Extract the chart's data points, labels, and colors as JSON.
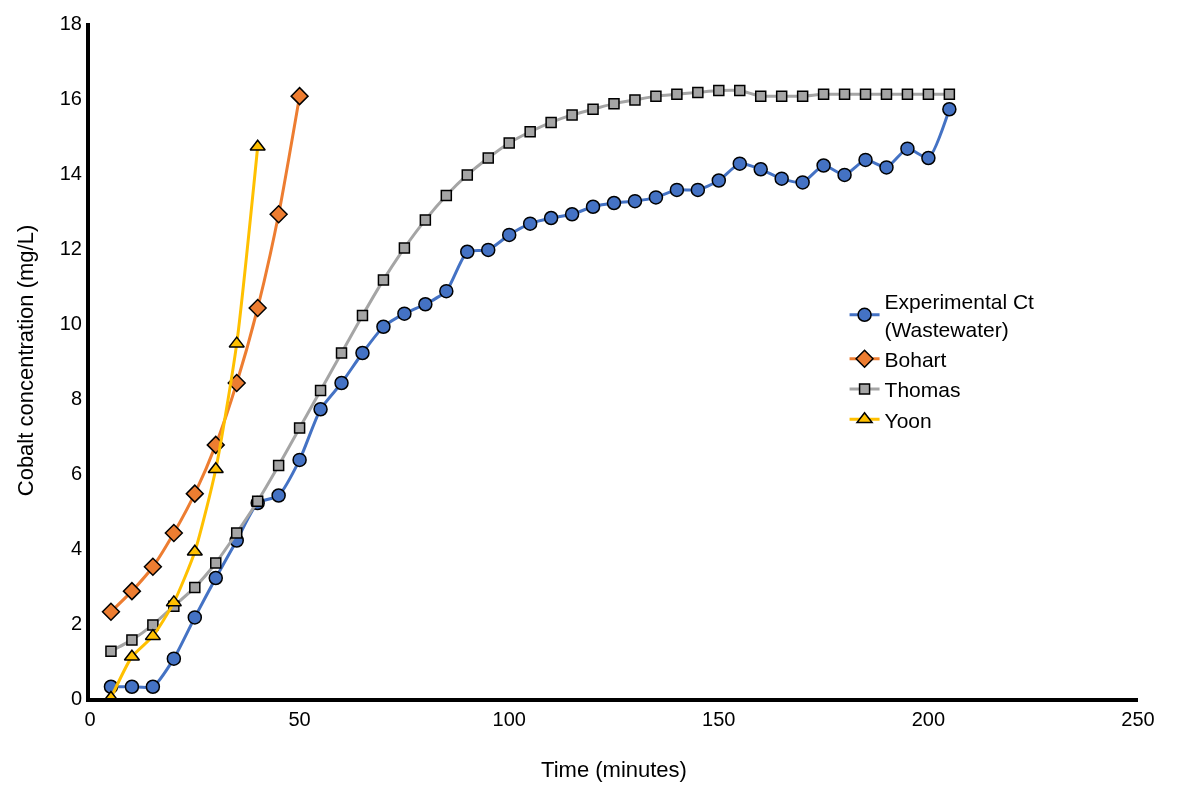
{
  "chart_data": {
    "type": "line",
    "xlabel": "Time (minutes)",
    "ylabel": "Cobalt concentration (mg/L)",
    "xlim": [
      0,
      250
    ],
    "xticks": [
      0,
      50,
      100,
      150,
      200,
      250
    ],
    "ylim": [
      0,
      18
    ],
    "yticks": [
      0,
      2,
      4,
      6,
      8,
      10,
      12,
      14,
      16,
      18
    ],
    "grid": false,
    "legend": "right",
    "series": [
      {
        "name": "Experimental Ct (Wastewater)",
        "color": "#4472c4",
        "marker": "circle",
        "x": [
          5,
          10,
          15,
          20,
          25,
          30,
          35,
          40,
          45,
          50,
          55,
          60,
          65,
          70,
          75,
          80,
          85,
          90,
          95,
          100,
          105,
          110,
          115,
          120,
          125,
          130,
          135,
          140,
          145,
          150,
          155,
          160,
          165,
          170,
          175,
          180,
          185,
          190,
          195,
          200,
          205
        ],
        "values": [
          0.3,
          0.3,
          0.3,
          1.05,
          2.15,
          3.2,
          4.2,
          5.2,
          5.4,
          6.35,
          7.7,
          8.4,
          9.2,
          9.9,
          10.25,
          10.5,
          10.85,
          11.9,
          11.95,
          12.35,
          12.65,
          12.8,
          12.9,
          13.1,
          13.2,
          13.25,
          13.35,
          13.55,
          13.55,
          13.8,
          14.25,
          14.1,
          13.85,
          13.75,
          14.2,
          13.95,
          14.35,
          14.15,
          14.65,
          14.4,
          15.7
        ]
      },
      {
        "name": "Bohart",
        "color": "#ed7d31",
        "marker": "diamond",
        "x": [
          5,
          10,
          15,
          20,
          25,
          30,
          35,
          40,
          45,
          50
        ],
        "values": [
          2.3,
          2.85,
          3.5,
          4.4,
          5.45,
          6.75,
          8.4,
          10.4,
          12.9,
          16.05
        ]
      },
      {
        "name": "Thomas",
        "color": "#a5a5a5",
        "marker": "square",
        "x": [
          5,
          10,
          15,
          20,
          25,
          30,
          35,
          40,
          45,
          50,
          55,
          60,
          65,
          70,
          75,
          80,
          85,
          90,
          95,
          100,
          105,
          110,
          115,
          120,
          125,
          130,
          135,
          140,
          145,
          150,
          155,
          160,
          165,
          170,
          175,
          180,
          185,
          190,
          195,
          200,
          205
        ],
        "values": [
          1.25,
          1.55,
          1.95,
          2.45,
          2.95,
          3.6,
          4.4,
          5.25,
          6.2,
          7.2,
          8.2,
          9.2,
          10.2,
          11.15,
          12.0,
          12.75,
          13.4,
          13.95,
          14.4,
          14.8,
          15.1,
          15.35,
          15.55,
          15.7,
          15.85,
          15.95,
          16.05,
          16.1,
          16.15,
          16.2,
          16.2,
          16.05,
          16.05,
          16.05,
          16.1,
          16.1,
          16.1,
          16.1,
          16.1,
          16.1,
          16.1
        ]
      },
      {
        "name": "Yoon",
        "color": "#ffc000",
        "marker": "triangle",
        "x": [
          5,
          10,
          15,
          20,
          25,
          30,
          35,
          40
        ],
        "values": [
          0,
          1.1,
          1.65,
          2.55,
          3.9,
          6.1,
          9.45,
          14.7
        ]
      }
    ]
  }
}
